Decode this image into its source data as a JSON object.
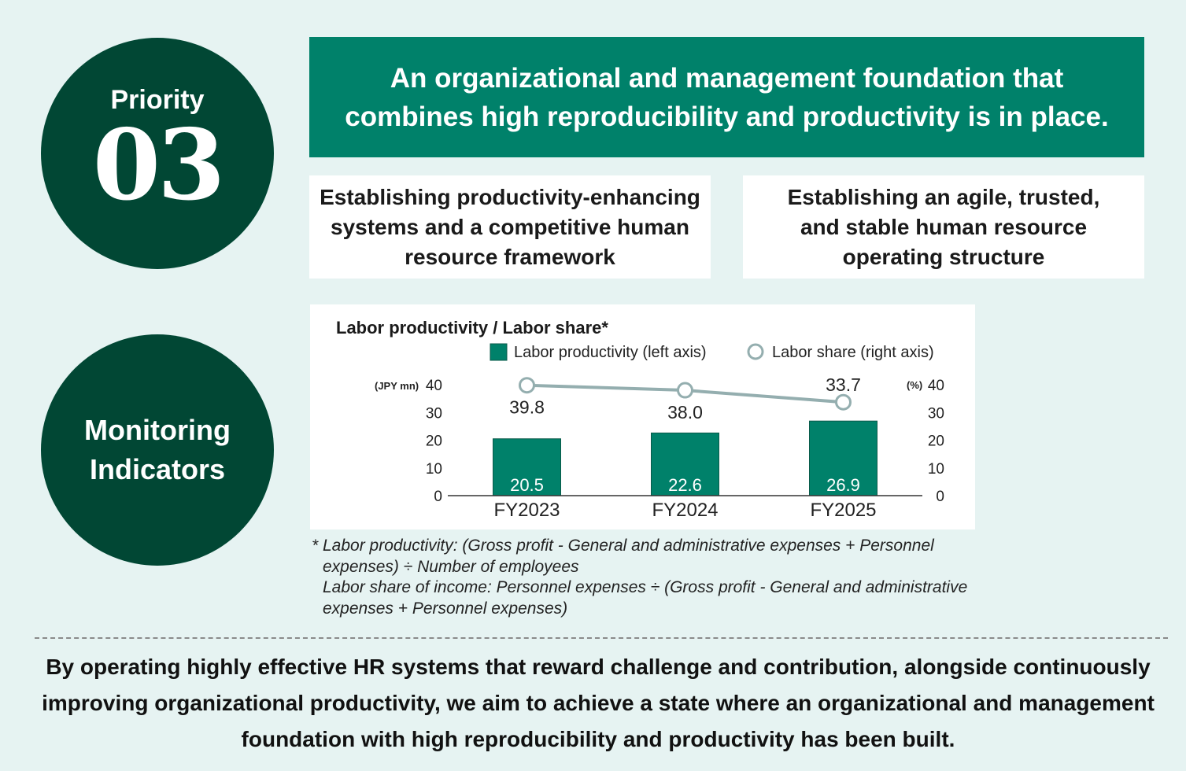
{
  "priority": {
    "label": "Priority",
    "number": "03"
  },
  "headline": "An organizational and management foundation that\ncombines high reproducibility and productivity is in place.",
  "sub_boxes": [
    {
      "text": "Establishing productivity-enhancing\nsystems and a competitive human\nresource framework"
    },
    {
      "text": "Establishing an agile, trusted,\nand stable human resource\noperating structure"
    }
  ],
  "monitoring": {
    "label": "Monitoring\nIndicators"
  },
  "chart_data": {
    "type": "bar",
    "title": "Labor productivity / Labor share*",
    "categories": [
      "FY2023",
      "FY2024",
      "FY2025"
    ],
    "series": [
      {
        "name": "Labor productivity (left axis)",
        "type": "bar",
        "axis": "left",
        "color": "#00816a",
        "values": [
          20.5,
          22.6,
          26.9
        ]
      },
      {
        "name": "Labor share (right axis)",
        "type": "line",
        "axis": "right",
        "color": "#94aeaf",
        "values": [
          39.8,
          38.0,
          33.7
        ]
      }
    ],
    "left_axis": {
      "unit": "(JPY mn)",
      "ticks": [
        0,
        10,
        20,
        30,
        40
      ],
      "ylim": [
        0,
        40
      ]
    },
    "right_axis": {
      "unit": "(%)",
      "ticks": [
        0,
        10,
        20,
        30,
        40
      ],
      "ylim": [
        0,
        40
      ]
    },
    "legend_position": "top",
    "grid": false
  },
  "footnote": {
    "star": "*",
    "lines": [
      "Labor productivity: (Gross profit - General and administrative expenses + Personnel",
      "expenses) ÷ Number of employees",
      "Labor share of income: Personnel expenses ÷ (Gross profit - General and administrative",
      "expenses + Personnel expenses)"
    ]
  },
  "summary": "By operating highly effective HR systems that reward challenge and contribution, alongside continuously\nimproving organizational productivity, we aim to achieve a state where an organizational and management\nfoundation with high reproducibility and productivity has been built."
}
